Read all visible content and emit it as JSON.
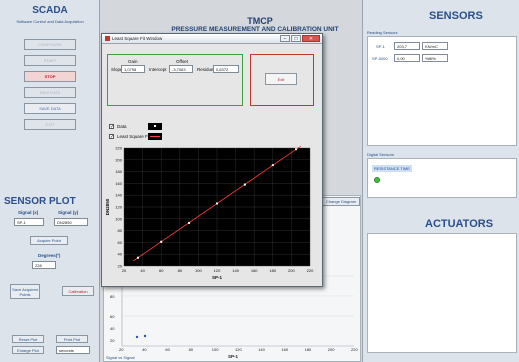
{
  "header": {
    "title": "TMCP",
    "subtitle": "PRESSURE MEASUREMENT AND CALIBRATION UNIT"
  },
  "scada": {
    "title": "SCADA",
    "subtitle": "Software Control and Data Acquisition",
    "buttons": [
      "CONFIGURE",
      "START",
      "STOP",
      "NEW DATA",
      "SAVE DATA",
      "EXIT"
    ]
  },
  "sensor_plot": {
    "title": "SENSOR PLOT",
    "signal_x_label": "Signal (x)",
    "signal_y_label": "Signal (y)",
    "signal_x_value": "SP-1",
    "signal_y_value": "DN2850",
    "acquire_point": "Acquire Point",
    "degrees_label": "Degrees(º)",
    "degrees_value": "228",
    "save_points": "Save Acquired Points",
    "calibration": "Calibration",
    "reset_plot": "Reset Plot",
    "print_plot": "Print Plot",
    "enlarge_plot": "Enlarge Plot",
    "units_value": "seconds"
  },
  "main_plot": {
    "x_ticks": [
      "20",
      "40",
      "60",
      "80",
      "100",
      "120",
      "140",
      "160",
      "180",
      "200",
      "220"
    ],
    "y_ticks": [
      "80",
      "60",
      "40",
      "20"
    ],
    "xlabel": "SP-1",
    "bottom_left": "Signal vs Signal",
    "change_diagram": "Change Diagram"
  },
  "sensors": {
    "title": "SENSORS",
    "reading_label": "Reading Sensors",
    "rows": [
      {
        "tag": "SP-1",
        "value": "203,7",
        "unit": "KN/mC"
      },
      {
        "tag": "SP-0000",
        "value": "0,00",
        "unit": "%fill%"
      }
    ],
    "digital_label": "Digital Sensors",
    "digital_item": "RESISTANCE TIME"
  },
  "actuators": {
    "title": "ACTUATORS"
  },
  "dialog": {
    "title": "Least Square Fit Window",
    "gain_label": "Gain",
    "offset_label": "Offset",
    "slope_label": "Slope",
    "slope_value": "1,0798",
    "intercept_label": "Intercept",
    "intercept_value": "-3,7063",
    "residue_label": "Residue",
    "residue_value": "0,6372",
    "exit_label": "Exit",
    "data_legend": "Data",
    "fit_legend": "Least Square Fit",
    "close_glyph": "✕",
    "min_glyph": "–",
    "max_glyph": "□"
  },
  "chart_data": {
    "type": "scatter",
    "xlabel": "SP-1",
    "ylabel": "DN2850",
    "xlim": [
      20,
      220
    ],
    "ylim": [
      20,
      220
    ],
    "x_ticks": [
      20,
      40,
      60,
      80,
      100,
      120,
      140,
      160,
      180,
      200,
      220
    ],
    "y_ticks": [
      20,
      40,
      60,
      80,
      100,
      120,
      140,
      160,
      180,
      200,
      220
    ],
    "grid": true,
    "series": [
      {
        "name": "Data",
        "x": [
          35,
          60,
          90,
          120,
          150,
          180,
          205
        ],
        "y": [
          34,
          61,
          93,
          126,
          158,
          191,
          218
        ]
      },
      {
        "name": "Least Square Fit",
        "x": [
          30,
          210
        ],
        "y": [
          28.7,
          223.1
        ]
      }
    ],
    "colors": {
      "background": "#000000",
      "grid": "#3a3a3a",
      "data": "#ffffff",
      "fit": "#ff3b3b"
    }
  }
}
